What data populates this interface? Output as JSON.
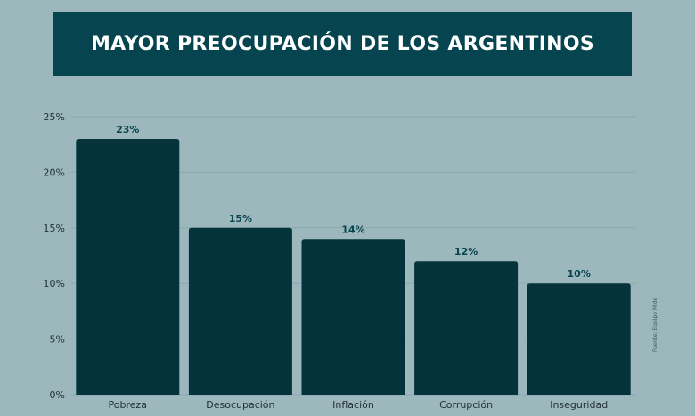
{
  "title": "MAYOR PREOCUPACIÓN DE LOS ARGENTINOS",
  "source": "Fuente: Equipo Mide",
  "colors": {
    "background": "#9db8bd",
    "banner": "#06454f",
    "bar": "#04333b",
    "grid": "#8aa9ae",
    "value_label": "#06454f"
  },
  "chart_data": {
    "type": "bar",
    "categories": [
      "Pobreza",
      "Desocupación",
      "Inflación",
      "Corrupción",
      "Inseguridad"
    ],
    "values": [
      23,
      15,
      14,
      12,
      10
    ],
    "value_labels": [
      "23%",
      "15%",
      "14%",
      "12%",
      "10%"
    ],
    "y_ticks": [
      "0%",
      "5%",
      "10%",
      "15%",
      "20%",
      "25%"
    ],
    "ylim": [
      0,
      25
    ],
    "grid": true
  }
}
